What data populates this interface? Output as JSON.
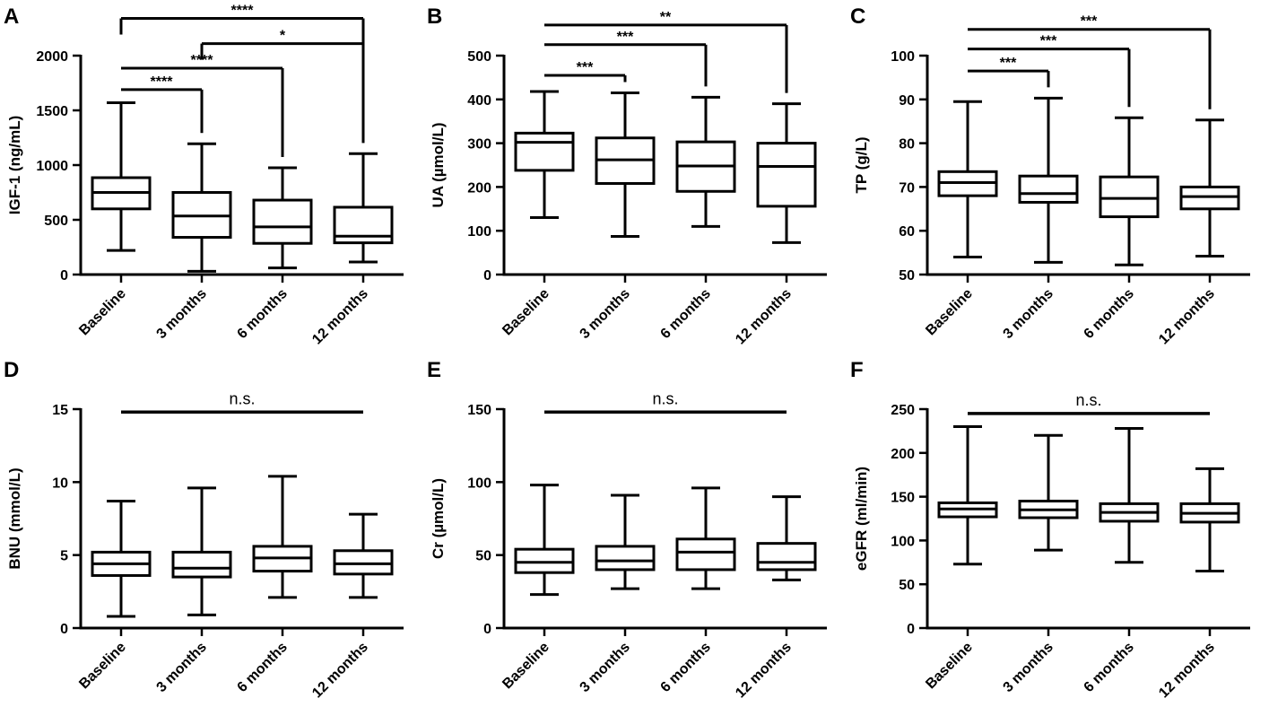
{
  "chart_data": [
    {
      "type": "box",
      "panel_label": "A",
      "ylabel": "IGF-1 (ng/mL)",
      "ylim": [
        0,
        2000
      ],
      "yticks": [
        0,
        500,
        1000,
        1500,
        2000
      ],
      "categories": [
        "Baseline",
        "3 months",
        "6 months",
        "12 months"
      ],
      "boxes": [
        {
          "min": 220,
          "q1": 600,
          "median": 750,
          "q3": 885,
          "max": 1570
        },
        {
          "min": 30,
          "q1": 340,
          "median": 535,
          "q3": 750,
          "max": 1195
        },
        {
          "min": 60,
          "q1": 285,
          "median": 435,
          "q3": 680,
          "max": 975
        },
        {
          "min": 115,
          "q1": 290,
          "median": 350,
          "q3": 615,
          "max": 1105
        }
      ],
      "brackets": [
        {
          "from": 0,
          "to": 1,
          "y": 1690,
          "label": "****",
          "ends": "right"
        },
        {
          "from": 0,
          "to": 2,
          "y": 1885,
          "label": "****",
          "ends": "right"
        },
        {
          "from": 1,
          "to": 3,
          "y": 2110,
          "label": "*",
          "ends": "both"
        },
        {
          "from": 0,
          "to": 3,
          "y": 2340,
          "label": "****",
          "ends": "both"
        }
      ]
    },
    {
      "type": "box",
      "panel_label": "B",
      "ylabel": "UA (µmol/L)",
      "ylim": [
        0,
        500
      ],
      "yticks": [
        0,
        100,
        200,
        300,
        400,
        500
      ],
      "categories": [
        "Baseline",
        "3 months",
        "6 months",
        "12 months"
      ],
      "boxes": [
        {
          "min": 130,
          "q1": 238,
          "median": 302,
          "q3": 323,
          "max": 418
        },
        {
          "min": 87,
          "q1": 208,
          "median": 262,
          "q3": 312,
          "max": 415
        },
        {
          "min": 110,
          "q1": 190,
          "median": 248,
          "q3": 303,
          "max": 405
        },
        {
          "min": 73,
          "q1": 156,
          "median": 247,
          "q3": 300,
          "max": 390
        }
      ],
      "brackets": [
        {
          "from": 0,
          "to": 1,
          "y": 455,
          "label": "***",
          "ends": "right"
        },
        {
          "from": 0,
          "to": 2,
          "y": 525,
          "label": "***",
          "ends": "right"
        },
        {
          "from": 0,
          "to": 3,
          "y": 570,
          "label": "**",
          "ends": "right"
        }
      ]
    },
    {
      "type": "box",
      "panel_label": "C",
      "ylabel": "TP (g/L)",
      "ylim": [
        50,
        100
      ],
      "yticks": [
        50,
        60,
        70,
        80,
        90,
        100
      ],
      "categories": [
        "Baseline",
        "3 months",
        "6 months",
        "12 months"
      ],
      "boxes": [
        {
          "min": 54,
          "q1": 68,
          "median": 71,
          "q3": 73.5,
          "max": 89.5
        },
        {
          "min": 52.8,
          "q1": 66.5,
          "median": 68.5,
          "q3": 72.5,
          "max": 90.3
        },
        {
          "min": 52.2,
          "q1": 63.2,
          "median": 67.4,
          "q3": 72.3,
          "max": 85.8
        },
        {
          "min": 54.2,
          "q1": 65,
          "median": 67.8,
          "q3": 70,
          "max": 85.3
        }
      ],
      "brackets": [
        {
          "from": 0,
          "to": 1,
          "y": 96.5,
          "label": "***",
          "ends": "right"
        },
        {
          "from": 0,
          "to": 2,
          "y": 101.5,
          "label": "***",
          "ends": "right"
        },
        {
          "from": 0,
          "to": 3,
          "y": 106,
          "label": "***",
          "ends": "right"
        }
      ]
    },
    {
      "type": "box",
      "panel_label": "D",
      "ylabel": "BNU (mmol/L)",
      "ylim": [
        0,
        15
      ],
      "yticks": [
        0,
        5,
        10,
        15
      ],
      "categories": [
        "Baseline",
        "3 months",
        "6 months",
        "12 months"
      ],
      "boxes": [
        {
          "min": 0.8,
          "q1": 3.6,
          "median": 4.4,
          "q3": 5.2,
          "max": 8.7
        },
        {
          "min": 0.9,
          "q1": 3.5,
          "median": 4.1,
          "q3": 5.2,
          "max": 9.6
        },
        {
          "min": 2.1,
          "q1": 3.9,
          "median": 4.8,
          "q3": 5.6,
          "max": 10.4
        },
        {
          "min": 2.1,
          "q1": 3.7,
          "median": 4.4,
          "q3": 5.3,
          "max": 7.8
        }
      ],
      "ns_line": {
        "y": 14.8,
        "label": "n.s."
      }
    },
    {
      "type": "box",
      "panel_label": "E",
      "ylabel": "Cr (µmol/L)",
      "ylim": [
        0,
        150
      ],
      "yticks": [
        0,
        50,
        100,
        150
      ],
      "categories": [
        "Baseline",
        "3 months",
        "6 months",
        "12 months"
      ],
      "boxes": [
        {
          "min": 23,
          "q1": 38,
          "median": 45,
          "q3": 54,
          "max": 98
        },
        {
          "min": 27,
          "q1": 40,
          "median": 46,
          "q3": 56,
          "max": 91
        },
        {
          "min": 27,
          "q1": 40,
          "median": 52,
          "q3": 61,
          "max": 96
        },
        {
          "min": 33,
          "q1": 40,
          "median": 45,
          "q3": 58,
          "max": 90
        }
      ],
      "ns_line": {
        "y": 148,
        "label": "n.s."
      }
    },
    {
      "type": "box",
      "panel_label": "F",
      "ylabel": "eGFR (ml/min)",
      "ylim": [
        0,
        250
      ],
      "yticks": [
        0,
        50,
        100,
        150,
        200,
        250
      ],
      "categories": [
        "Baseline",
        "3 months",
        "6 months",
        "12 months"
      ],
      "boxes": [
        {
          "min": 73,
          "q1": 127,
          "median": 136,
          "q3": 143,
          "max": 230
        },
        {
          "min": 89,
          "q1": 126,
          "median": 135,
          "q3": 145,
          "max": 220
        },
        {
          "min": 75,
          "q1": 122,
          "median": 132,
          "q3": 142,
          "max": 228
        },
        {
          "min": 65,
          "q1": 121,
          "median": 131,
          "q3": 142,
          "max": 182
        }
      ],
      "ns_line": {
        "y": 245,
        "label": "n.s."
      }
    }
  ]
}
